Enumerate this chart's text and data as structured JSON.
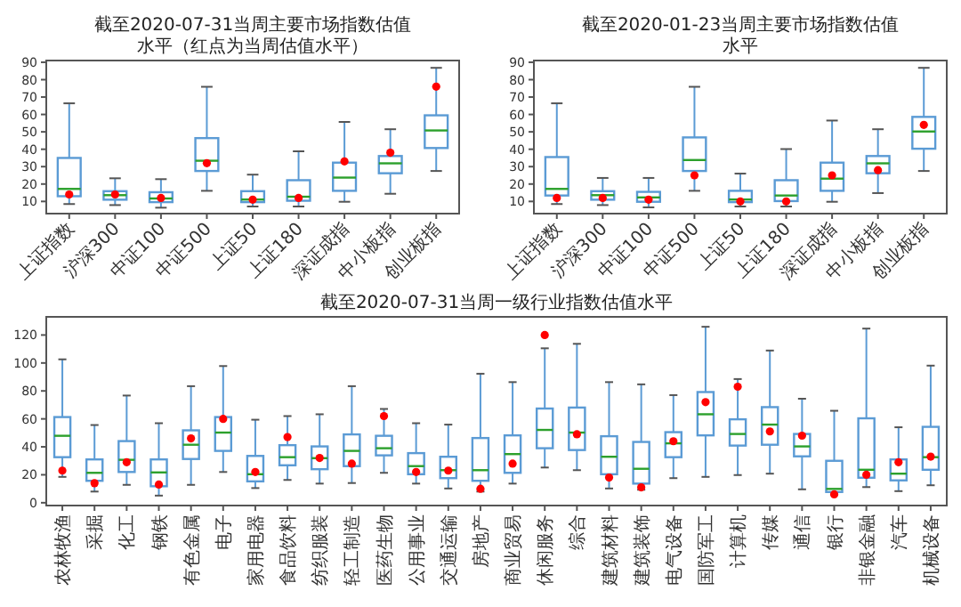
{
  "chart_data": [
    {
      "type": "box",
      "title": "截至2020-07-31当周主要市场指数估值水平（红点为当周估值水平）",
      "color": "#5b9bd5",
      "ylim": [
        3,
        91
      ],
      "yticks": [
        10,
        20,
        30,
        40,
        50,
        60,
        70,
        80,
        90
      ],
      "categories": [
        "上证指数",
        "沪深300",
        "中证100",
        "中证500",
        "上证50",
        "上证180",
        "深证成指",
        "中小板指",
        "创业板指"
      ],
      "boxes": [
        {
          "low": 8.5,
          "q1": 13,
          "median": 17.2,
          "q3": 35,
          "high": 66.4
        },
        {
          "low": 7.9,
          "q1": 11,
          "median": 13.6,
          "q3": 15.9,
          "high": 23.3
        },
        {
          "low": 6.4,
          "q1": 9.6,
          "median": 11.7,
          "q3": 15.3,
          "high": 22.8
        },
        {
          "low": 16.1,
          "q1": 27.5,
          "median": 33.4,
          "q3": 46.4,
          "high": 75.9
        },
        {
          "low": 7.1,
          "q1": 9.6,
          "median": 11.1,
          "q3": 15.9,
          "high": 25.4
        },
        {
          "low": 7.1,
          "q1": 10.4,
          "median": 12.7,
          "q3": 22.2,
          "high": 38.8
        },
        {
          "low": 9.8,
          "q1": 16.1,
          "median": 23.7,
          "q3": 32.3,
          "high": 55.7
        },
        {
          "low": 14.4,
          "q1": 26.2,
          "median": 31.9,
          "q3": 36.1,
          "high": 51.5
        },
        {
          "low": 27.5,
          "q1": 40.7,
          "median": 50.8,
          "q3": 59.5,
          "high": 86.8
        }
      ],
      "series": [
        {
          "type": "scatter",
          "color": "#ff0000",
          "marker": "circle",
          "x": [
            "上证指数",
            "沪深300",
            "中证100",
            "中证500",
            "上证50",
            "上证180",
            "深证成指",
            "中小板指",
            "创业板指"
          ],
          "values": [
            14,
            14,
            12,
            32,
            11,
            12,
            33,
            38,
            76
          ]
        }
      ]
    },
    {
      "type": "box",
      "title": "截至2020-01-23当周主要市场指数估值水平",
      "color": "#5b9bd5",
      "ylim": [
        3,
        91
      ],
      "yticks": [
        10,
        20,
        30,
        40,
        50,
        60,
        70,
        80,
        90
      ],
      "categories": [
        "上证指数",
        "沪深300",
        "中证100",
        "中证500",
        "上证50",
        "上证180",
        "深证成指",
        "中小板指",
        "创业板指"
      ],
      "boxes": [
        {
          "low": 8.5,
          "q1": 13.4,
          "median": 17.2,
          "q3": 35.5,
          "high": 66.4
        },
        {
          "low": 7.9,
          "q1": 11,
          "median": 13.6,
          "q3": 15.9,
          "high": 23.5
        },
        {
          "low": 6.6,
          "q1": 9.8,
          "median": 12.3,
          "q3": 15.5,
          "high": 23.5
        },
        {
          "low": 16.1,
          "q1": 27.5,
          "median": 33.8,
          "q3": 46.8,
          "high": 75.9
        },
        {
          "low": 7.1,
          "q1": 9.6,
          "median": 11.1,
          "q3": 16.1,
          "high": 26
        },
        {
          "low": 7.1,
          "q1": 10.2,
          "median": 13.4,
          "q3": 22.2,
          "high": 40.1
        },
        {
          "low": 9.8,
          "q1": 16.1,
          "median": 23.1,
          "q3": 32.3,
          "high": 56.5
        },
        {
          "low": 14.8,
          "q1": 26.2,
          "median": 31.9,
          "q3": 36.1,
          "high": 51.5
        },
        {
          "low": 27.5,
          "q1": 40.3,
          "median": 50.2,
          "q3": 58.6,
          "high": 86.8
        }
      ],
      "series": [
        {
          "type": "scatter",
          "color": "#ff0000",
          "marker": "circle",
          "x": [
            "上证指数",
            "沪深300",
            "中证100",
            "中证500",
            "上证50",
            "上证180",
            "深证成指",
            "中小板指",
            "创业板指"
          ],
          "values": [
            12,
            12,
            11,
            25,
            10,
            10,
            25,
            28,
            54
          ]
        }
      ]
    },
    {
      "type": "box",
      "title": "截至2020-07-31当周一级行业指数估值水平",
      "color": "#5b9bd5",
      "ylim": [
        -2,
        133
      ],
      "yticks": [
        0,
        20,
        40,
        60,
        80,
        100,
        120
      ],
      "categories": [
        "农林牧渔",
        "采掘",
        "化工",
        "钢铁",
        "有色金属",
        "电子",
        "家用电器",
        "食品饮料",
        "纺织服装",
        "轻工制造",
        "医药生物",
        "公用事业",
        "交通运输",
        "房地产",
        "商业贸易",
        "休闲服务",
        "综合",
        "建筑材料",
        "建筑装饰",
        "电气设备",
        "国防军工",
        "计算机",
        "传媒",
        "通信",
        "银行",
        "非银金融",
        "汽车",
        "机械设备"
      ],
      "boxes": [
        {
          "low": 18.5,
          "q1": 32.6,
          "median": 47.9,
          "q3": 61.3,
          "high": 102.6
        },
        {
          "low": 8,
          "q1": 15.7,
          "median": 21.4,
          "q3": 31,
          "high": 55.6
        },
        {
          "low": 12.8,
          "q1": 22,
          "median": 30.7,
          "q3": 44.1,
          "high": 76.7
        },
        {
          "low": 5.1,
          "q1": 11.8,
          "median": 21.7,
          "q3": 31,
          "high": 56.9
        },
        {
          "low": 12.8,
          "q1": 31.3,
          "median": 41.5,
          "q3": 51.8,
          "high": 83.4
        },
        {
          "low": 22,
          "q1": 37.1,
          "median": 50.2,
          "q3": 61.3,
          "high": 97.8
        },
        {
          "low": 10.5,
          "q1": 15.3,
          "median": 20.4,
          "q3": 33.5,
          "high": 59.4
        },
        {
          "low": 16.3,
          "q1": 26.8,
          "median": 32.6,
          "q3": 41.2,
          "high": 62
        },
        {
          "low": 13.7,
          "q1": 24,
          "median": 31.9,
          "q3": 40.3,
          "high": 63.3
        },
        {
          "low": 14.1,
          "q1": 26.2,
          "median": 37.1,
          "q3": 48.9,
          "high": 83.4
        },
        {
          "low": 21.4,
          "q1": 33.9,
          "median": 39,
          "q3": 47.9,
          "high": 67.1
        },
        {
          "low": 13.7,
          "q1": 20.4,
          "median": 26.2,
          "q3": 35.5,
          "high": 56.9
        },
        {
          "low": 10.2,
          "q1": 17.6,
          "median": 23.3,
          "q3": 32.9,
          "high": 55.9
        },
        {
          "low": 8,
          "q1": 15.7,
          "median": 23.3,
          "q3": 46.3,
          "high": 92.3
        },
        {
          "low": 13.7,
          "q1": 21.4,
          "median": 34.8,
          "q3": 48.2,
          "high": 86.3
        },
        {
          "low": 25.2,
          "q1": 39,
          "median": 52.1,
          "q3": 67.4,
          "high": 110.5
        },
        {
          "low": 23.3,
          "q1": 37.7,
          "median": 50.2,
          "q3": 68.1,
          "high": 113.7
        },
        {
          "low": 10.2,
          "q1": 20.4,
          "median": 32.9,
          "q3": 47.6,
          "high": 86.3
        },
        {
          "low": 9.3,
          "q1": 13.7,
          "median": 24.3,
          "q3": 43.5,
          "high": 84.7
        },
        {
          "low": 17.6,
          "q1": 32.6,
          "median": 42.5,
          "q3": 50.5,
          "high": 77
        },
        {
          "low": 18.5,
          "q1": 48.2,
          "median": 63.3,
          "q3": 79.2,
          "high": 125.9
        },
        {
          "low": 19.8,
          "q1": 40.9,
          "median": 49.2,
          "q3": 59.7,
          "high": 88.5
        },
        {
          "low": 20.8,
          "q1": 41.5,
          "median": 55.9,
          "q3": 68.4,
          "high": 108.9
        },
        {
          "low": 9.6,
          "q1": 33.2,
          "median": 40.3,
          "q3": 49.2,
          "high": 74.4
        },
        {
          "low": 6,
          "q1": 7.7,
          "median": 9.9,
          "q3": 30,
          "high": 65.8
        },
        {
          "low": 11.2,
          "q1": 17.9,
          "median": 23.6,
          "q3": 60.4,
          "high": 124.6
        },
        {
          "low": 8.3,
          "q1": 16,
          "median": 20.8,
          "q3": 31,
          "high": 54
        },
        {
          "low": 12.5,
          "q1": 23.6,
          "median": 32.6,
          "q3": 54.3,
          "high": 98.1
        }
      ],
      "series": [
        {
          "type": "scatter",
          "color": "#ff0000",
          "marker": "circle",
          "x": [
            "农林牧渔",
            "采掘",
            "化工",
            "钢铁",
            "有色金属",
            "电子",
            "家用电器",
            "食品饮料",
            "纺织服装",
            "轻工制造",
            "医药生物",
            "公用事业",
            "交通运输",
            "房地产",
            "商业贸易",
            "休闲服务",
            "综合",
            "建筑材料",
            "建筑装饰",
            "电气设备",
            "国防军工",
            "计算机",
            "传媒",
            "通信",
            "银行",
            "非银金融",
            "汽车",
            "机械设备"
          ],
          "values": [
            23,
            14,
            29,
            13,
            46,
            60,
            22,
            47,
            32,
            28,
            62,
            22,
            23,
            10,
            28,
            120,
            49,
            18,
            11,
            44,
            72,
            83,
            51,
            48,
            6,
            20,
            29,
            33
          ]
        }
      ]
    }
  ]
}
